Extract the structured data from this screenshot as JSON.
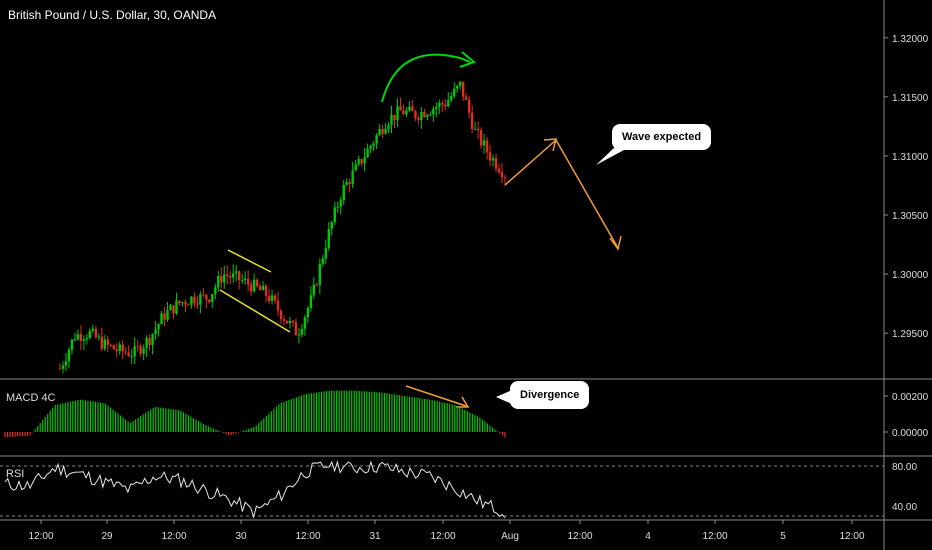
{
  "header": {
    "title": "British Pound / U.S. Dollar, 30, OANDA"
  },
  "panels": {
    "macd_label": "MACD 4C",
    "rsi_label": "RSI"
  },
  "callouts": {
    "wave": "Wave expected",
    "divergence": "Divergence"
  },
  "colors": {
    "up": "#00c805",
    "down": "#e0301e",
    "yellow": "#e8e22c",
    "orange": "#f39c34",
    "green_arrow": "#00d60a",
    "rsi_line": "#e6e6e6"
  },
  "chart_data": [
    {
      "type": "candlestick",
      "title": "British Pound / U.S. Dollar, 30, OANDA",
      "y_ticks": [
        "1.32000",
        "1.31500",
        "1.31000",
        "1.30500",
        "1.30000",
        "1.29500"
      ],
      "ylim": [
        1.2912,
        1.3232
      ],
      "x_ticks": [
        "12:00",
        "29",
        "12:00",
        "30",
        "12:00",
        "31",
        "12:00",
        "Aug",
        "12:00",
        "4",
        "12:00",
        "5",
        "12:00"
      ],
      "close_path": [
        1.292,
        1.2948,
        1.295,
        1.294,
        1.2935,
        1.2933,
        1.2945,
        1.2965,
        1.2975,
        1.298,
        1.298,
        1.3,
        1.2996,
        1.299,
        1.2982,
        1.2965,
        1.295,
        1.298,
        1.303,
        1.307,
        1.309,
        1.311,
        1.313,
        1.3138,
        1.3135,
        1.314,
        1.3145,
        1.316,
        1.312,
        1.31,
        1.3085
      ],
      "annotations": [
        "yellow channel lines",
        "green arc arrow",
        "orange projected wave",
        "Wave expected"
      ]
    },
    {
      "type": "histogram",
      "label": "MACD 4C",
      "y_ticks": [
        "0.00200",
        "0.00000"
      ],
      "values": [
        -0.0003,
        -0.0002,
        0.0015,
        0.0018,
        0.0016,
        0.0005,
        0.0014,
        0.0012,
        0.0004,
        -0.0002,
        0.0003,
        0.0016,
        0.0021,
        0.0023,
        0.0023,
        0.0022,
        0.002,
        0.0018,
        0.0015,
        0.0008,
        -0.0003
      ],
      "annotations": [
        "Divergence"
      ]
    },
    {
      "type": "line",
      "label": "RSI",
      "y_ticks": [
        "80.00",
        "40.00"
      ],
      "guides": [
        80,
        30
      ],
      "values": [
        62,
        60,
        78,
        72,
        64,
        56,
        70,
        66,
        56,
        46,
        34,
        50,
        74,
        82,
        78,
        80,
        74,
        70,
        58,
        44,
        34
      ]
    }
  ]
}
